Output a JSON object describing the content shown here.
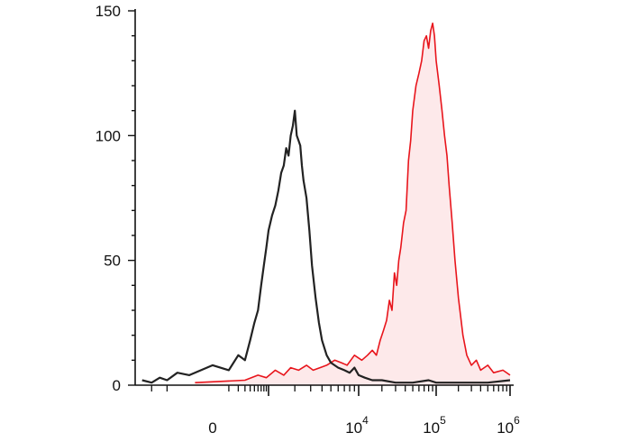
{
  "chart_data": {
    "type": "area",
    "title": "",
    "xlabel": "",
    "ylabel": "",
    "x_scale": "biexponential",
    "ylim": [
      0,
      150
    ],
    "grid": false,
    "legend": "none",
    "y_ticks": [
      {
        "value": 0,
        "label": "0"
      },
      {
        "value": 50,
        "label": "50"
      },
      {
        "value": 100,
        "label": "100"
      },
      {
        "value": 150,
        "label": "150"
      }
    ],
    "x_ticks": [
      {
        "value": 0,
        "base": "0",
        "exp": ""
      },
      {
        "value": 10000,
        "base": "10",
        "exp": "4"
      },
      {
        "value": 100000,
        "base": "10",
        "exp": "5"
      },
      {
        "value": 1000000,
        "base": "10",
        "exp": "6"
      }
    ],
    "series": [
      {
        "color": "#222222",
        "fill": "none",
        "points": [
          [
            -1500,
            2
          ],
          [
            -1000,
            1
          ],
          [
            -700,
            3
          ],
          [
            -500,
            2
          ],
          [
            -300,
            5
          ],
          [
            -150,
            4
          ],
          [
            0,
            8
          ],
          [
            100,
            6
          ],
          [
            200,
            12
          ],
          [
            300,
            10
          ],
          [
            400,
            18
          ],
          [
            500,
            25
          ],
          [
            600,
            30
          ],
          [
            700,
            40
          ],
          [
            800,
            48
          ],
          [
            900,
            55
          ],
          [
            1000,
            62
          ],
          [
            1100,
            68
          ],
          [
            1200,
            72
          ],
          [
            1300,
            78
          ],
          [
            1400,
            85
          ],
          [
            1500,
            88
          ],
          [
            1600,
            95
          ],
          [
            1700,
            92
          ],
          [
            1800,
            100
          ],
          [
            1900,
            104
          ],
          [
            2000,
            110
          ],
          [
            2100,
            100
          ],
          [
            2200,
            98
          ],
          [
            2300,
            96
          ],
          [
            2400,
            88
          ],
          [
            2500,
            82
          ],
          [
            2700,
            75
          ],
          [
            2900,
            62
          ],
          [
            3100,
            48
          ],
          [
            3400,
            35
          ],
          [
            3700,
            25
          ],
          [
            4000,
            18
          ],
          [
            4500,
            12
          ],
          [
            5000,
            9
          ],
          [
            6000,
            7
          ],
          [
            7000,
            6
          ],
          [
            8000,
            5
          ],
          [
            9000,
            7
          ],
          [
            10000,
            4
          ],
          [
            12000,
            3
          ],
          [
            15000,
            2
          ],
          [
            20000,
            2
          ],
          [
            30000,
            1
          ],
          [
            50000,
            1
          ],
          [
            80000,
            2
          ],
          [
            100000,
            1
          ],
          [
            200000,
            1
          ],
          [
            500000,
            1
          ],
          [
            1000000,
            2
          ]
        ]
      },
      {
        "color": "#e8151c",
        "fill": "#fde9ea",
        "points": [
          [
            -100,
            1
          ],
          [
            300,
            2
          ],
          [
            600,
            4
          ],
          [
            900,
            3
          ],
          [
            1200,
            6
          ],
          [
            1500,
            4
          ],
          [
            1800,
            7
          ],
          [
            2200,
            6
          ],
          [
            2700,
            8
          ],
          [
            3200,
            6
          ],
          [
            3800,
            7
          ],
          [
            4500,
            8
          ],
          [
            5500,
            10
          ],
          [
            6500,
            9
          ],
          [
            7500,
            8
          ],
          [
            9000,
            12
          ],
          [
            11000,
            10
          ],
          [
            13000,
            12
          ],
          [
            15000,
            14
          ],
          [
            17000,
            12
          ],
          [
            19000,
            18
          ],
          [
            21000,
            22
          ],
          [
            23000,
            26
          ],
          [
            25000,
            34
          ],
          [
            27000,
            30
          ],
          [
            29000,
            45
          ],
          [
            31000,
            40
          ],
          [
            33000,
            50
          ],
          [
            35000,
            55
          ],
          [
            38000,
            65
          ],
          [
            41000,
            70
          ],
          [
            44000,
            90
          ],
          [
            47000,
            98
          ],
          [
            50000,
            110
          ],
          [
            55000,
            120
          ],
          [
            60000,
            125
          ],
          [
            65000,
            130
          ],
          [
            70000,
            138
          ],
          [
            75000,
            140
          ],
          [
            80000,
            135
          ],
          [
            85000,
            142
          ],
          [
            90000,
            145
          ],
          [
            95000,
            140
          ],
          [
            100000,
            130
          ],
          [
            110000,
            120
          ],
          [
            120000,
            110
          ],
          [
            130000,
            100
          ],
          [
            140000,
            92
          ],
          [
            150000,
            80
          ],
          [
            165000,
            65
          ],
          [
            180000,
            50
          ],
          [
            200000,
            35
          ],
          [
            230000,
            20
          ],
          [
            260000,
            12
          ],
          [
            300000,
            8
          ],
          [
            350000,
            10
          ],
          [
            400000,
            6
          ],
          [
            500000,
            8
          ],
          [
            600000,
            5
          ],
          [
            800000,
            6
          ],
          [
            1000000,
            4
          ]
        ]
      }
    ]
  }
}
